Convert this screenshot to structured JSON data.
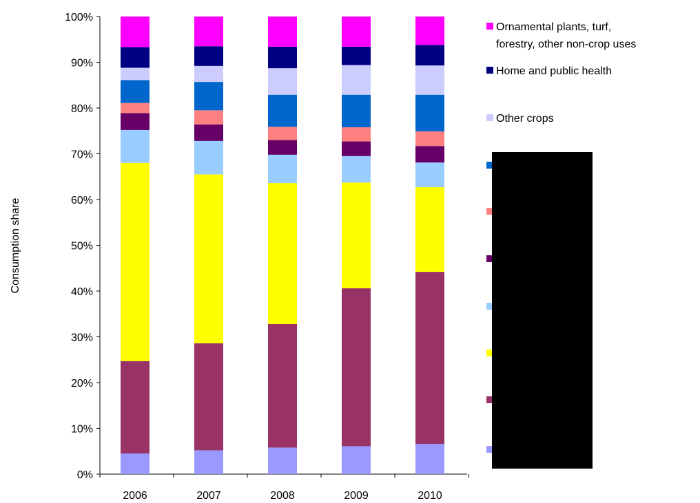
{
  "chart_data": {
    "type": "bar",
    "stacked": true,
    "normalized": true,
    "title": "",
    "xlabel": "",
    "ylabel": "Consumption share",
    "ylim": [
      0,
      100
    ],
    "y_ticks": [
      "0%",
      "10%",
      "20%",
      "30%",
      "40%",
      "50%",
      "60%",
      "70%",
      "80%",
      "90%",
      "100%"
    ],
    "categories": [
      "2006",
      "2007",
      "2008",
      "2009",
      "2010"
    ],
    "grid": false,
    "legend_position": "right",
    "series": [
      {
        "label": "",
        "color": "#9999ff",
        "values": [
          4.5,
          5.2,
          5.8,
          6.1,
          6.6
        ]
      },
      {
        "label": "",
        "color": "#993366",
        "values": [
          20.2,
          23.4,
          27.0,
          34.5,
          37.6
        ]
      },
      {
        "label": "",
        "color": "#ffff00",
        "values": [
          43.3,
          36.9,
          30.8,
          23.1,
          18.5
        ]
      },
      {
        "label": "",
        "color": "#99ccff",
        "values": [
          7.2,
          7.3,
          6.2,
          5.8,
          5.4
        ]
      },
      {
        "label": "",
        "color": "#660066",
        "values": [
          3.7,
          3.6,
          3.2,
          3.2,
          3.6
        ]
      },
      {
        "label": "",
        "color": "#ff8080",
        "values": [
          2.2,
          3.1,
          2.9,
          3.1,
          3.2
        ]
      },
      {
        "label": "",
        "color": "#0066cc",
        "values": [
          5.0,
          6.2,
          7.0,
          7.1,
          8.0
        ]
      },
      {
        "label": "Other crops",
        "color": "#ccccff",
        "values": [
          2.7,
          3.5,
          5.8,
          6.5,
          6.4
        ]
      },
      {
        "label": "Home and public health",
        "color": "#000080",
        "values": [
          4.5,
          4.3,
          4.7,
          4.0,
          4.5
        ]
      },
      {
        "label": "Ornamental plants, turf, forestry, other non-crop uses",
        "label_lines": [
          "Ornamental plants, turf,",
          "forestry, other non-crop uses"
        ],
        "color": "#ff00ff",
        "values": [
          6.7,
          6.5,
          6.6,
          6.6,
          6.2
        ]
      }
    ],
    "legend_order": [
      9,
      8,
      7,
      6,
      5,
      4,
      3,
      2,
      1,
      0
    ]
  }
}
